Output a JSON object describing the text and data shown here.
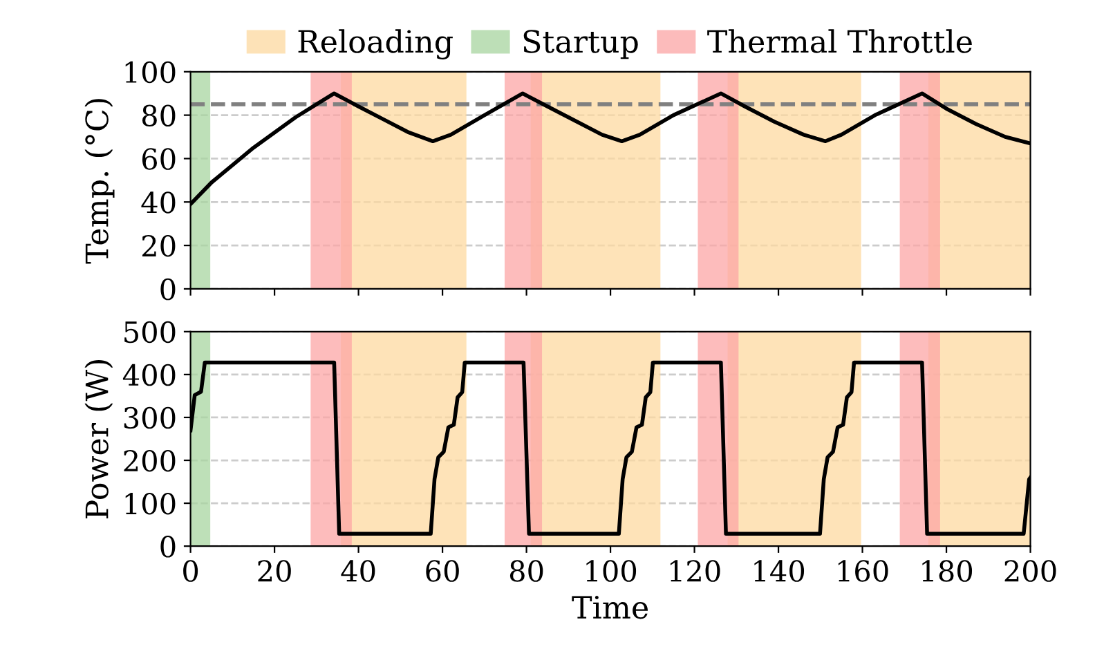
{
  "chart_data": [
    {
      "type": "line",
      "ylabel": "Temp. (°C)",
      "xlim": [
        0,
        200
      ],
      "xticks": [
        0,
        20,
        40,
        60,
        80,
        100,
        120,
        140,
        160,
        180,
        200
      ],
      "ylim": [
        0,
        100
      ],
      "yticks": [
        0,
        20,
        40,
        60,
        80,
        100
      ],
      "grid": "y",
      "tick_labels": "y",
      "legend": "top",
      "series": [
        {
          "color": "#000000",
          "x": [
            0,
            5,
            10,
            15,
            20,
            25,
            30,
            34.2,
            40,
            46,
            52,
            57.7,
            62,
            70,
            79.1,
            85,
            92,
            98,
            102.7,
            107,
            115,
            126.3,
            132,
            139,
            146,
            151.2,
            155,
            163,
            174.2,
            180,
            187,
            194,
            200
          ],
          "values": [
            39,
            49,
            57,
            65,
            72,
            79,
            85,
            90,
            84,
            78,
            72,
            68,
            71,
            80,
            90,
            84,
            77,
            71,
            68,
            71,
            80,
            90,
            84,
            77,
            71,
            68,
            71,
            80,
            90,
            83,
            76,
            70,
            67
          ]
        }
      ],
      "ref_lines": [
        {
          "axis": "y",
          "value": 85,
          "color": "#808080",
          "line_style": "dashed"
        }
      ],
      "bands": [
        {
          "axis": "x",
          "from": 35.8,
          "to": 65.7,
          "label": "Reloading",
          "color": "#fdd9a0"
        },
        {
          "axis": "x",
          "from": 0,
          "to": 4.7,
          "label": "Startup",
          "color": "#a8d5a0"
        },
        {
          "axis": "x",
          "from": 28.6,
          "to": 38.4,
          "label": "Thermal Throttle",
          "color": "#fca5a5"
        },
        {
          "axis": "x",
          "from": 81,
          "to": 111.9,
          "color": "#fdd9a0"
        },
        {
          "axis": "x",
          "from": 127.9,
          "to": 159.7,
          "color": "#fdd9a0"
        },
        {
          "axis": "x",
          "from": 175.7,
          "to": 200,
          "color": "#fdd9a0"
        },
        {
          "axis": "x",
          "from": 74.8,
          "to": 83.7,
          "color": "#fca5a5"
        },
        {
          "axis": "x",
          "from": 120.8,
          "to": 130.5,
          "color": "#fca5a5"
        },
        {
          "axis": "x",
          "from": 168.9,
          "to": 178.5,
          "color": "#fca5a5"
        }
      ]
    },
    {
      "type": "line",
      "ylabel": "Power (W)",
      "xlabel": "Time",
      "xlim": [
        0,
        200
      ],
      "xticks": [
        0,
        20,
        40,
        60,
        80,
        100,
        120,
        140,
        160,
        180,
        200
      ],
      "ylim": [
        0,
        500
      ],
      "yticks": [
        0,
        100,
        200,
        300,
        400,
        500
      ],
      "grid": "y",
      "series": [
        {
          "color": "#000000",
          "x": [
            0,
            1,
            2.5,
            3.4,
            34.2,
            35.4,
            57.2,
            58.1,
            59.0,
            60.3,
            61.4,
            62.7,
            63.6,
            64.7,
            65.3,
            79.3,
            80.6,
            102,
            102.9,
            103.8,
            105.1,
            106.2,
            107.5,
            108.4,
            109.5,
            110.1,
            126.3,
            127.5,
            149.9,
            150.8,
            151.7,
            153.0,
            154.1,
            155.4,
            156.3,
            157.4,
            158.0,
            174.2,
            175.4,
            198.4,
            199.7,
            200
          ],
          "values": [
            270,
            352,
            360,
            428,
            428,
            29,
            29,
            156,
            207,
            220,
            277,
            283,
            347,
            359,
            428,
            428,
            29,
            29,
            156,
            207,
            220,
            277,
            283,
            347,
            359,
            428,
            428,
            29,
            29,
            156,
            207,
            220,
            277,
            283,
            347,
            359,
            428,
            428,
            29,
            29,
            156,
            160
          ]
        }
      ],
      "bands": [
        {
          "axis": "x",
          "from": 35.8,
          "to": 65.7,
          "color": "#fdd9a0"
        },
        {
          "axis": "x",
          "from": 0,
          "to": 4.7,
          "color": "#a8d5a0"
        },
        {
          "axis": "x",
          "from": 28.6,
          "to": 38.4,
          "color": "#fca5a5"
        },
        {
          "axis": "x",
          "from": 81,
          "to": 111.9,
          "color": "#fdd9a0"
        },
        {
          "axis": "x",
          "from": 127.9,
          "to": 159.7,
          "color": "#fdd9a0"
        },
        {
          "axis": "x",
          "from": 175.7,
          "to": 200,
          "color": "#fdd9a0"
        },
        {
          "axis": "x",
          "from": 74.8,
          "to": 83.7,
          "color": "#fca5a5"
        },
        {
          "axis": "x",
          "from": 120.8,
          "to": 130.5,
          "color": "#fca5a5"
        },
        {
          "axis": "x",
          "from": 168.9,
          "to": 178.5,
          "color": "#fca5a5"
        }
      ]
    }
  ]
}
